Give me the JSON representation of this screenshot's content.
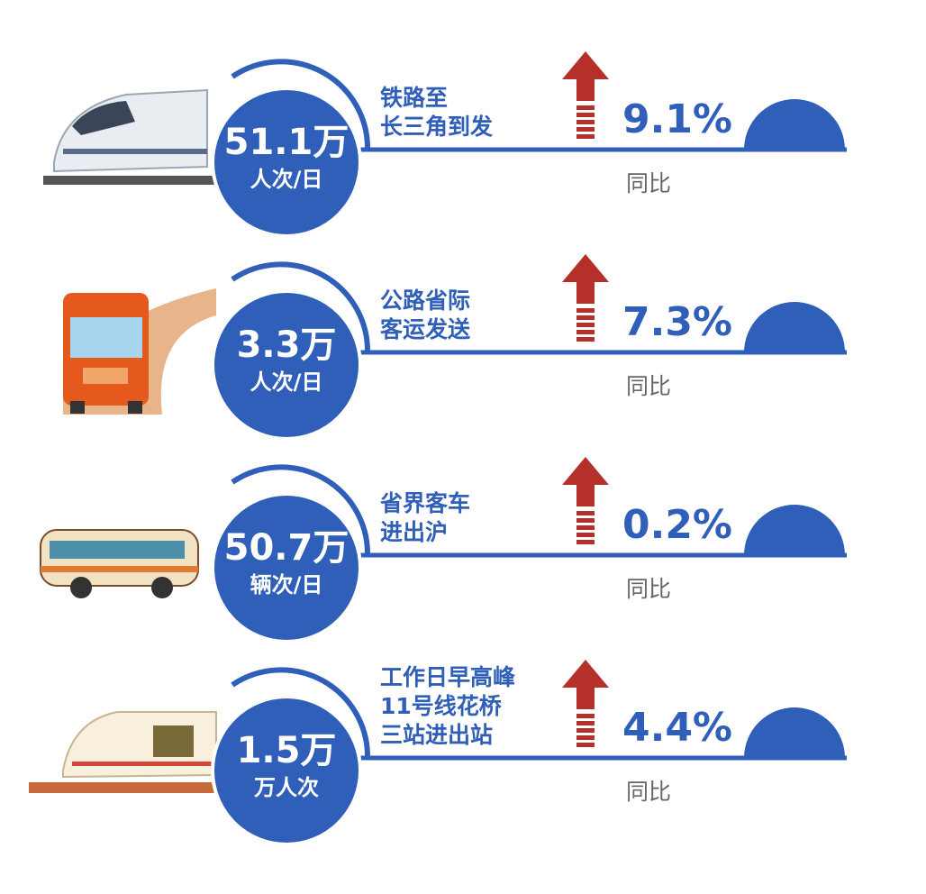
{
  "items": [
    {
      "value": "51.1万",
      "unit": "人次/日",
      "label": [
        "铁路至",
        "长三角到发"
      ],
      "change": "9.1%",
      "compare": "同比"
    },
    {
      "value": "3.3万",
      "unit": "人次/日",
      "label": [
        "公路省际",
        "客运发送"
      ],
      "change": "7.3%",
      "compare": "同比"
    },
    {
      "value": "50.7万",
      "unit": "辆次/日",
      "label": [
        "省界客车",
        "进出沪"
      ],
      "change": "0.2%",
      "compare": "同比"
    },
    {
      "value": "1.5万",
      "unit": "万人次",
      "label": [
        "工作日早高峰",
        "11号线花桥",
        "三站进出站"
      ],
      "change": "4.4%",
      "compare": "同比"
    }
  ]
}
